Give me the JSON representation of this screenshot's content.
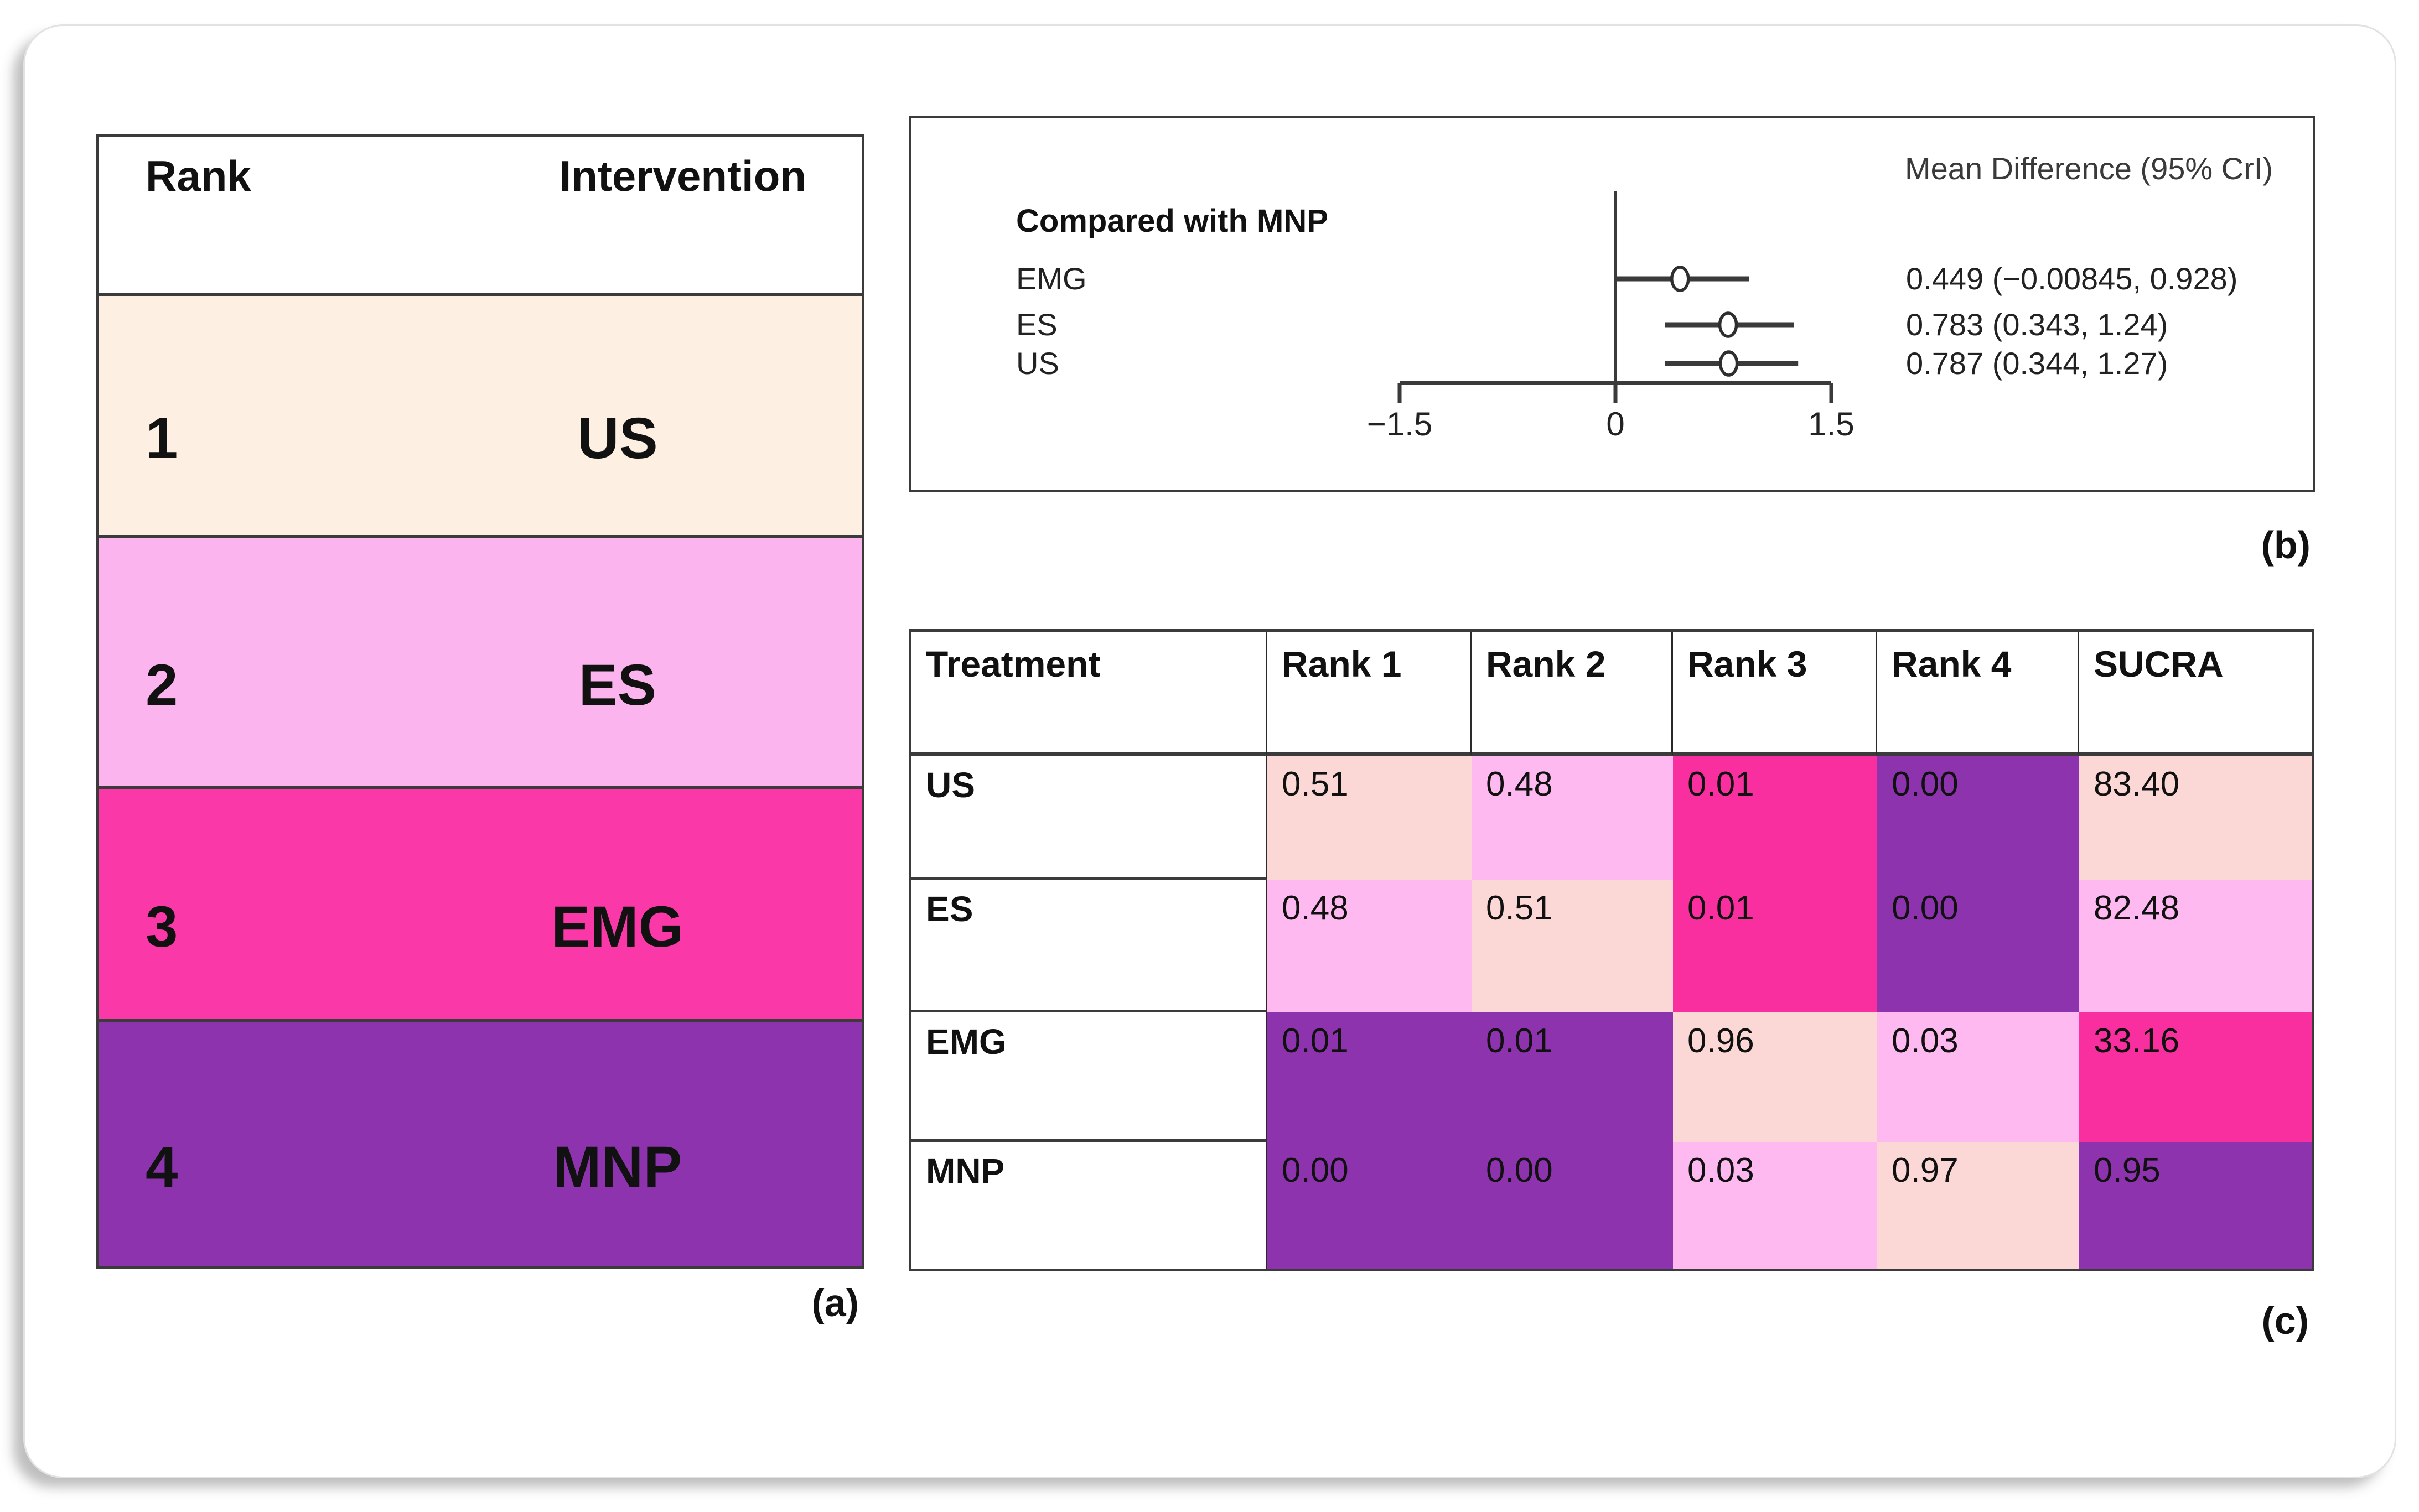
{
  "panel_a": {
    "label": "(a)",
    "header": {
      "rank": "Rank",
      "intervention": "Intervention"
    },
    "rows": [
      {
        "rank": "1",
        "intervention": "US",
        "color": "#fdf0e2"
      },
      {
        "rank": "2",
        "intervention": "ES",
        "color": "#fcb4ef"
      },
      {
        "rank": "3",
        "intervention": "EMG",
        "color": "#fa38a8"
      },
      {
        "rank": "4",
        "intervention": "MNP",
        "color": "#8d33ae"
      }
    ]
  },
  "panel_b": {
    "label": "(b)",
    "title": "Mean Difference (95% CrI)",
    "comparator_heading": "Compared with MNP",
    "rows": [
      {
        "label": "EMG",
        "estimate_text": "0.449 (−0.00845, 0.928)",
        "mean": 0.449,
        "lower": -0.00845,
        "upper": 0.928
      },
      {
        "label": "ES",
        "estimate_text": "0.783 (0.343, 1.24)",
        "mean": 0.783,
        "lower": 0.343,
        "upper": 1.24
      },
      {
        "label": "US",
        "estimate_text": "0.787 (0.344, 1.27)",
        "mean": 0.787,
        "lower": 0.344,
        "upper": 1.27
      }
    ],
    "axis": {
      "min": -1.5,
      "max": 1.5,
      "ticks": [
        {
          "value": -1.5,
          "label": "−1.5"
        },
        {
          "value": 0,
          "label": "0"
        },
        {
          "value": 1.5,
          "label": "1.5"
        }
      ]
    }
  },
  "panel_c": {
    "label": "(c)",
    "headers": [
      "Treatment",
      "Rank 1",
      "Rank 2",
      "Rank 3",
      "Rank 4",
      "SUCRA"
    ],
    "rows": [
      {
        "treatment": "US",
        "cells": [
          {
            "value": "0.51",
            "color": "#fbd8d6"
          },
          {
            "value": "0.48",
            "color": "#feb9f1"
          },
          {
            "value": "0.01",
            "color": "#fa2f9f"
          },
          {
            "value": "0.00",
            "color": "#8d33ae"
          },
          {
            "value": "83.40",
            "color": "#fbd8d6"
          }
        ]
      },
      {
        "treatment": "ES",
        "cells": [
          {
            "value": "0.48",
            "color": "#feb9f1"
          },
          {
            "value": "0.51",
            "color": "#fbd8d6"
          },
          {
            "value": "0.01",
            "color": "#fa2f9f"
          },
          {
            "value": "0.00",
            "color": "#8d33ae"
          },
          {
            "value": "82.48",
            "color": "#feb9f1"
          }
        ]
      },
      {
        "treatment": "EMG",
        "cells": [
          {
            "value": "0.01",
            "color": "#8d33ae"
          },
          {
            "value": "0.01",
            "color": "#8d33ae"
          },
          {
            "value": "0.96",
            "color": "#fbd8d6"
          },
          {
            "value": "0.03",
            "color": "#feb9f1"
          },
          {
            "value": "33.16",
            "color": "#fa2f9f"
          }
        ]
      },
      {
        "treatment": "MNP",
        "cells": [
          {
            "value": "0.00",
            "color": "#8d33ae"
          },
          {
            "value": "0.00",
            "color": "#8d33ae"
          },
          {
            "value": "0.03",
            "color": "#feb9f1"
          },
          {
            "value": "0.97",
            "color": "#fbd8d6"
          },
          {
            "value": "0.95",
            "color": "#8d33ae"
          }
        ]
      }
    ]
  },
  "chart_data": [
    {
      "type": "table",
      "title": "(a) Intervention ranking",
      "columns": [
        "Rank",
        "Intervention"
      ],
      "rows": [
        [
          1,
          "US"
        ],
        [
          2,
          "ES"
        ],
        [
          3,
          "EMG"
        ],
        [
          4,
          "MNP"
        ]
      ]
    },
    {
      "type": "scatter",
      "subtype": "forest-plot",
      "title": "Mean Difference (95% CrI)",
      "annotation": "Compared with MNP",
      "series": [
        {
          "name": "EMG",
          "mean": 0.449,
          "ci": [
            -0.00845,
            0.928
          ]
        },
        {
          "name": "ES",
          "mean": 0.783,
          "ci": [
            0.343,
            1.24
          ]
        },
        {
          "name": "US",
          "mean": 0.787,
          "ci": [
            0.344,
            1.27
          ]
        }
      ],
      "xlim": [
        -1.5,
        1.5
      ],
      "x_ticks": [
        -1.5,
        0,
        1.5
      ],
      "reference_line_x": 0,
      "legend_position": "none",
      "grid": false
    },
    {
      "type": "heatmap",
      "title": "(c) Rank probabilities and SUCRA",
      "columns": [
        "Treatment",
        "Rank 1",
        "Rank 2",
        "Rank 3",
        "Rank 4",
        "SUCRA"
      ],
      "rows": [
        {
          "treatment": "US",
          "values": [
            0.51,
            0.48,
            0.01,
            0.0
          ],
          "sucra": 83.4
        },
        {
          "treatment": "ES",
          "values": [
            0.48,
            0.51,
            0.01,
            0.0
          ],
          "sucra": 82.48
        },
        {
          "treatment": "EMG",
          "values": [
            0.01,
            0.01,
            0.96,
            0.03
          ],
          "sucra": 33.16
        },
        {
          "treatment": "MNP",
          "values": [
            0.0,
            0.0,
            0.03,
            0.97
          ],
          "sucra": 0.95
        }
      ],
      "color_scale": {
        "highest": "#fbd8d6",
        "second": "#feb9f1",
        "third": "#fa2f9f",
        "lowest": "#8d33ae"
      }
    }
  ]
}
